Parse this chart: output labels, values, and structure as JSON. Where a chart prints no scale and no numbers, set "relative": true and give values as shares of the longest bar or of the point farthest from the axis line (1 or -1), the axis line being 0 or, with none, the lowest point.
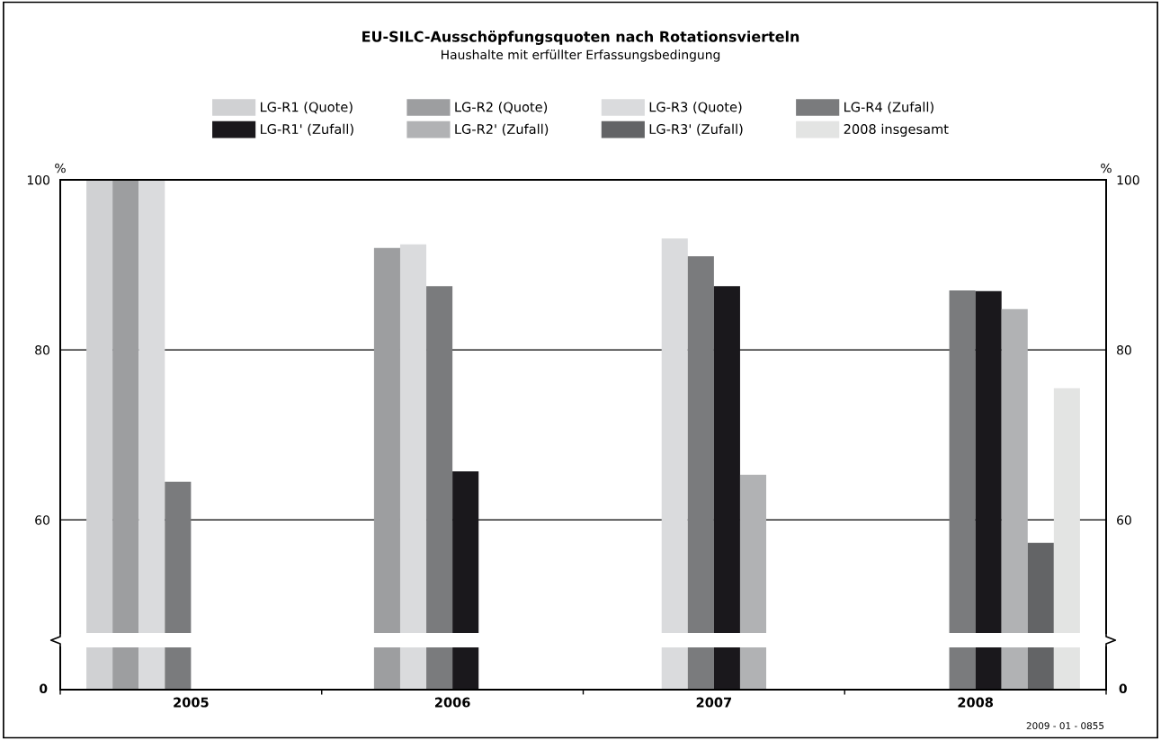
{
  "chart_data": [
    {
      "type": "bar",
      "title": "EU-SILC-Ausschöpfungsquoten nach Rotationsvierteln",
      "subtitle": "Haushalte mit erfüllter Erfassungsbedingung",
      "ylabel": "%",
      "y2label": "%",
      "categories": [
        "2005",
        "2006",
        "2007",
        "2008"
      ],
      "ylim": [
        46.7,
        100
      ],
      "yticks": [
        60,
        80,
        100
      ],
      "y2lim": [
        46.7,
        100
      ],
      "y2ticks": [
        60,
        80,
        100
      ],
      "grid": "y",
      "legend": "top",
      "tick_labels": "y",
      "series": [
        {
          "name": "LG-R1 (Quote)",
          "color": "#d0d1d3",
          "values": [
            100,
            null,
            null,
            null
          ]
        },
        {
          "name": "LG-R2 (Quote)",
          "color": "#9d9ea0",
          "values": [
            100,
            92.0,
            null,
            null
          ]
        },
        {
          "name": "LG-R3 (Quote)",
          "color": "#dadbdd",
          "values": [
            100,
            92.4,
            93.1,
            null
          ]
        },
        {
          "name": "LG-R4 (Zufall)",
          "color": "#7a7b7d",
          "values": [
            64.5,
            87.5,
            91.0,
            87.0
          ]
        },
        {
          "name": "LG-R1' (Zufall)",
          "color": "#1a181c",
          "values": [
            null,
            65.7,
            87.5,
            86.9
          ]
        },
        {
          "name": "LG-R2' (Zufall)",
          "color": "#b1b2b4",
          "values": [
            null,
            null,
            65.3,
            84.8
          ]
        },
        {
          "name": "LG-R3' (Zufall)",
          "color": "#636466",
          "values": [
            null,
            null,
            null,
            57.3
          ]
        },
        {
          "name": "2008 insgesamt",
          "color": "#e3e4e3",
          "values": [
            null,
            null,
            null,
            75.5
          ]
        }
      ]
    },
    {
      "type": "bar",
      "categories": [
        "2005",
        "2006",
        "2007",
        "2008"
      ],
      "relative": true,
      "annotations": [
        "0",
        "0",
        "2009 - 01 - 0855"
      ],
      "series": [
        {
          "color": "#d0d1d3",
          "values": [
            1,
            null,
            null,
            null
          ]
        },
        {
          "color": "#9d9ea0",
          "values": [
            1,
            1,
            null,
            null
          ]
        },
        {
          "color": "#dadbdd",
          "values": [
            1,
            1,
            1,
            null
          ]
        },
        {
          "color": "#7a7b7d",
          "values": [
            1,
            1,
            1,
            1
          ]
        },
        {
          "color": "#1a181c",
          "values": [
            null,
            1,
            1,
            1
          ]
        },
        {
          "color": "#b1b2b4",
          "values": [
            null,
            null,
            1,
            1
          ]
        },
        {
          "color": "#636466",
          "values": [
            null,
            null,
            null,
            1
          ]
        },
        {
          "color": "#e3e4e3",
          "values": [
            null,
            null,
            null,
            1
          ]
        }
      ]
    }
  ]
}
